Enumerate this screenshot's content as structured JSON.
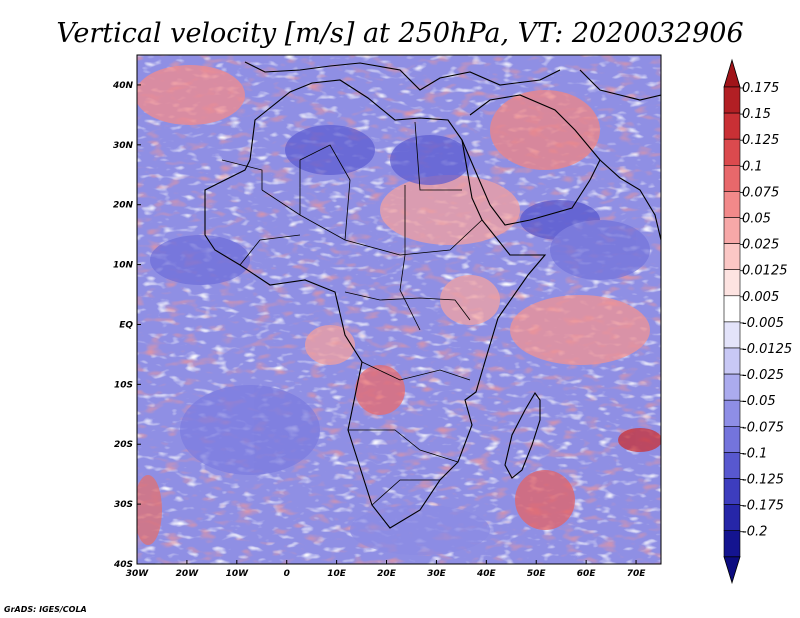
{
  "chart_data": {
    "type": "heatmap",
    "title": "Vertical velocity [m/s] at 250hPa, VT: 2020032906",
    "variable": "Vertical velocity",
    "units": "m/s",
    "level": "250hPa",
    "valid_time": "2020032906",
    "x_range": [
      -30,
      75
    ],
    "y_range": [
      -40,
      45
    ],
    "x_ticks": [
      {
        "value": -30,
        "label": "30W"
      },
      {
        "value": -20,
        "label": "20W"
      },
      {
        "value": -10,
        "label": "10W"
      },
      {
        "value": 0,
        "label": "0"
      },
      {
        "value": 10,
        "label": "10E"
      },
      {
        "value": 20,
        "label": "20E"
      },
      {
        "value": 30,
        "label": "30E"
      },
      {
        "value": 40,
        "label": "40E"
      },
      {
        "value": 50,
        "label": "50E"
      },
      {
        "value": 60,
        "label": "60E"
      },
      {
        "value": 70,
        "label": "70E"
      }
    ],
    "y_ticks": [
      {
        "value": 40,
        "label": "40N"
      },
      {
        "value": 30,
        "label": "30N"
      },
      {
        "value": 20,
        "label": "20N"
      },
      {
        "value": 10,
        "label": "10N"
      },
      {
        "value": 0,
        "label": "EQ"
      },
      {
        "value": -10,
        "label": "10S"
      },
      {
        "value": -20,
        "label": "20S"
      },
      {
        "value": -30,
        "label": "30S"
      },
      {
        "value": -40,
        "label": "40S"
      }
    ],
    "colorbar": {
      "levels": [
        {
          "label": "0.175",
          "color": "#b21f24"
        },
        {
          "label": "0.15",
          "color": "#c93035"
        },
        {
          "label": "0.125",
          "color": "#db4a4e"
        },
        {
          "label": "0.1",
          "color": "#e8686b"
        },
        {
          "label": "0.075",
          "color": "#f2898a"
        },
        {
          "label": "0.05",
          "color": "#f7a8a8"
        },
        {
          "label": "0.025",
          "color": "#fbc7c5"
        },
        {
          "label": "0.0125",
          "color": "#fde3e1"
        },
        {
          "label": "0.005",
          "color": "#ffffff"
        },
        {
          "label": "-0.005",
          "color": "#e3e3fa"
        },
        {
          "label": "-0.0125",
          "color": "#c8c8f5"
        },
        {
          "label": "-0.025",
          "color": "#ababee"
        },
        {
          "label": "-0.05",
          "color": "#8e8ee6"
        },
        {
          "label": "-0.075",
          "color": "#7474dc"
        },
        {
          "label": "-0.1",
          "color": "#5858cf"
        },
        {
          "label": "-0.125",
          "color": "#3d3dbe"
        },
        {
          "label": "-0.175",
          "color": "#2626a8"
        },
        {
          "label": "-0.2",
          "color": "#141490"
        }
      ],
      "top_color": "#a01419",
      "bottom_color": "#0c0c80"
    }
  },
  "credit": "GrADS: IGES/COLA"
}
